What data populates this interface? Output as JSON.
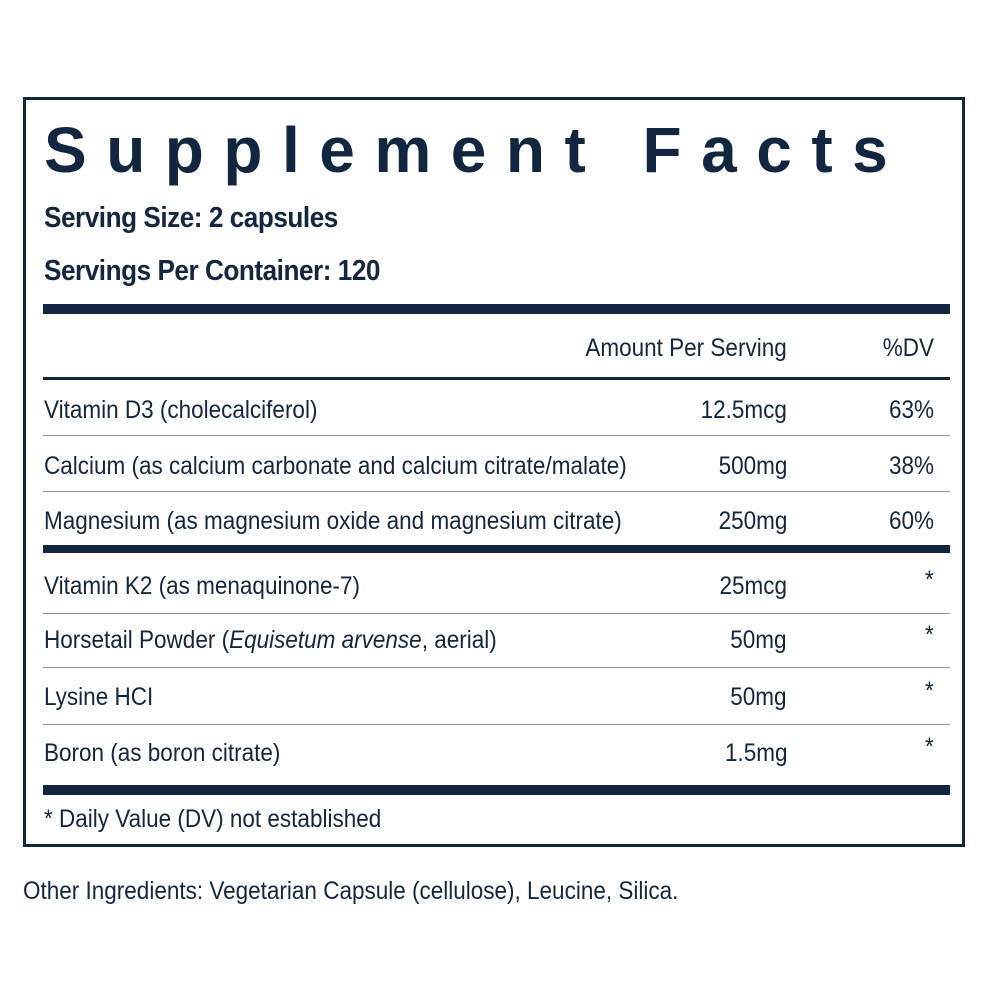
{
  "title": "Supplement Facts",
  "serving_size": "Serving Size: 2 capsules",
  "servings_per_container": "Servings Per Container: 120",
  "headers": {
    "amount": "Amount Per Serving",
    "dv": "%DV"
  },
  "rows": [
    {
      "name": "Vitamin D3 (cholecalciferol)",
      "amount": "12.5mcg",
      "dv": "63%"
    },
    {
      "name": "Calcium (as calcium carbonate and calcium citrate/malate)",
      "amount": "500mg",
      "dv": "38%"
    },
    {
      "name": "Magnesium (as magnesium oxide and magnesium citrate)",
      "amount": "250mg",
      "dv": "60%"
    },
    {
      "name": "Vitamin K2 (as menaquinone-7)",
      "amount": "25mcg",
      "dv": "*"
    },
    {
      "name_prefix": "Horsetail Powder (",
      "name_italic": "Equisetum arvense",
      "name_suffix": ", aerial)",
      "amount": "50mg",
      "dv": "*"
    },
    {
      "name": "Lysine HCI",
      "amount": "50mg",
      "dv": "*"
    },
    {
      "name": "Boron (as boron citrate)",
      "amount": "1.5mg",
      "dv": "*"
    }
  ],
  "footnote": "* Daily Value (DV) not established",
  "other_ingredients": "Other Ingredients: Vegetarian Capsule (cellulose), Leucine, Silica."
}
